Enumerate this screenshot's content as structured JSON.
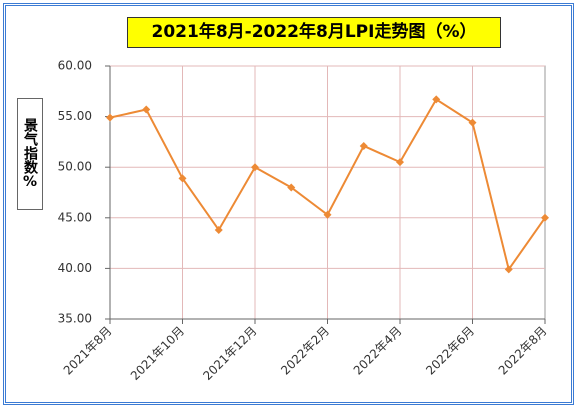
{
  "chart_data": {
    "type": "line",
    "title": "2021年8月-2022年8月LPI走势图（%）",
    "y_label": "景气指数%",
    "categories": [
      "2021年8月",
      null,
      "2021年10月",
      null,
      "2021年12月",
      null,
      "2022年2月",
      null,
      "2022年4月",
      null,
      "2022年6月",
      null,
      "2022年8月"
    ],
    "series": [
      {
        "name": "LPI",
        "color": "#ed8a35",
        "values": [
          54.9,
          55.7,
          48.9,
          43.8,
          50.0,
          48.0,
          45.3,
          52.1,
          50.5,
          56.7,
          54.4,
          39.9,
          45.0
        ]
      }
    ],
    "ylim": [
      35,
      60
    ],
    "yticks": [
      {
        "value": 35,
        "label": "35.00"
      },
      {
        "value": 40,
        "label": "40.00"
      },
      {
        "value": 45,
        "label": "45.00"
      },
      {
        "value": 50,
        "label": "50.00"
      },
      {
        "value": 55,
        "label": "55.00"
      },
      {
        "value": 60,
        "label": "60.00"
      }
    ],
    "grid": true
  }
}
